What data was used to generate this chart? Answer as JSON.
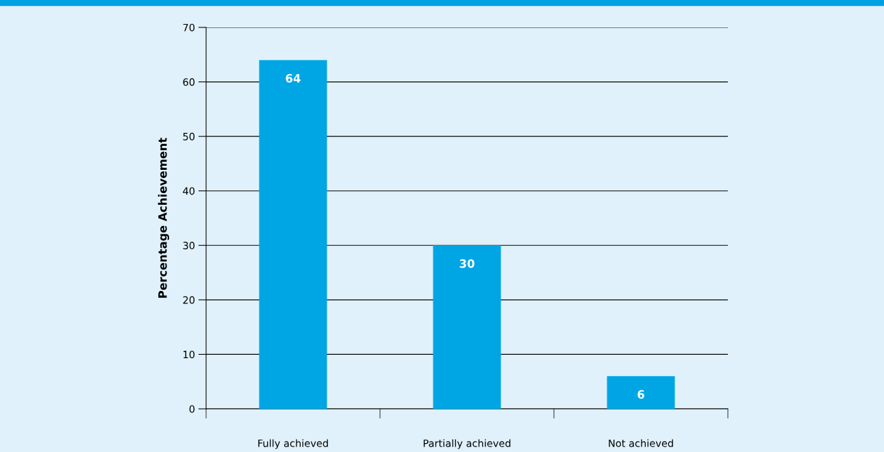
{
  "chart_data": {
    "type": "bar",
    "ylabel": "Percentage Achievement",
    "categories": [
      "Fully achieved",
      "Partially achieved",
      "Not achieved"
    ],
    "values": [
      64,
      30,
      6
    ],
    "color": "#00a6e4",
    "data_labels": true,
    "ylim": [
      0,
      70
    ],
    "yticks": [
      0,
      10,
      20,
      30,
      40,
      50,
      60,
      70
    ],
    "grid": "y"
  }
}
